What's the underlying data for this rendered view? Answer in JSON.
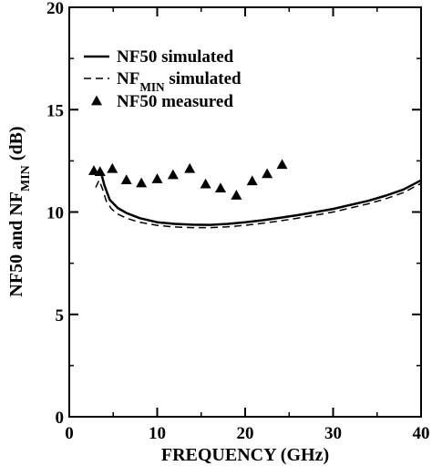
{
  "chart_data": {
    "type": "line",
    "xlabel": "FREQUENCY (GHz)",
    "ylabel_parts": [
      "NF50 and NF",
      "MIN",
      " (dB)"
    ],
    "xlim": [
      0,
      40
    ],
    "ylim": [
      0,
      20
    ],
    "x_ticks": [
      0,
      10,
      20,
      30,
      40
    ],
    "y_ticks": [
      0,
      5,
      10,
      15,
      20
    ],
    "grid": false,
    "legend_position": "upper-left",
    "legend": [
      {
        "style": "solid",
        "label_parts": [
          "NF50 simulated"
        ]
      },
      {
        "style": "dashed",
        "label_parts": [
          "NF",
          "MIN",
          " simulated"
        ]
      },
      {
        "style": "triangle",
        "label_parts": [
          "NF50 measured"
        ]
      }
    ],
    "series": [
      {
        "name": "NF50 simulated",
        "style": "solid",
        "x": [
          3.2,
          3.6,
          4.0,
          4.6,
          5.5,
          6.5,
          8,
          10,
          12,
          14,
          16,
          18,
          20,
          22,
          24,
          26,
          28,
          30,
          32,
          34,
          36,
          38,
          40
        ],
        "y": [
          11.8,
          11.95,
          11.3,
          10.6,
          10.2,
          9.95,
          9.7,
          9.5,
          9.42,
          9.38,
          9.37,
          9.42,
          9.5,
          9.6,
          9.72,
          9.85,
          10.0,
          10.15,
          10.35,
          10.55,
          10.8,
          11.1,
          11.55
        ]
      },
      {
        "name": "NFMIN simulated",
        "style": "dashed",
        "x": [
          3.0,
          3.4,
          3.8,
          4.2,
          4.8,
          5.5,
          6.5,
          8,
          10,
          12,
          14,
          16,
          18,
          20,
          22,
          24,
          26,
          28,
          30,
          32,
          34,
          36,
          38,
          40
        ],
        "y": [
          11.2,
          11.55,
          11.1,
          10.55,
          10.15,
          9.9,
          9.7,
          9.5,
          9.35,
          9.27,
          9.24,
          9.24,
          9.28,
          9.35,
          9.45,
          9.57,
          9.7,
          9.85,
          10.0,
          10.2,
          10.4,
          10.65,
          10.95,
          11.4
        ]
      },
      {
        "name": "NF50 measured",
        "style": "triangle",
        "x": [
          2.8,
          3.5,
          4.9,
          6.5,
          8.2,
          10.0,
          11.8,
          13.7,
          15.5,
          17.2,
          19.0,
          20.8,
          22.5,
          24.2
        ],
        "y": [
          12.0,
          11.95,
          12.1,
          11.55,
          11.4,
          11.6,
          11.8,
          12.1,
          11.35,
          11.15,
          10.8,
          11.5,
          11.85,
          12.3
        ]
      }
    ]
  }
}
